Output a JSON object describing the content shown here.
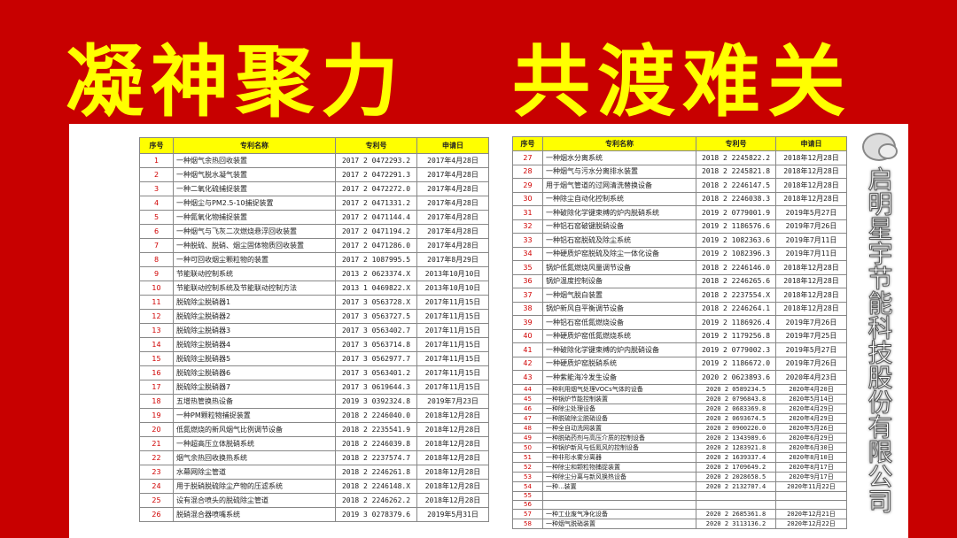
{
  "title": {
    "left": "凝神聚力",
    "right": "共渡难关"
  },
  "table": {
    "headers": [
      "序号",
      "专利名称",
      "专利号",
      "申请日"
    ],
    "left_rows": [
      [
        "1",
        "一种烟气余热回收装置",
        "2017 2 0472293.2",
        "2017年4月28日"
      ],
      [
        "2",
        "一种烟气脱水凝气装置",
        "2017 2 0472291.3",
        "2017年4月28日"
      ],
      [
        "3",
        "一种二氧化硫捕捉装置",
        "2017 2 0472272.0",
        "2017年4月28日"
      ],
      [
        "4",
        "一种烟尘与PM2.5-10捕捉装置",
        "2017 2 0471331.2",
        "2017年4月28日"
      ],
      [
        "5",
        "一种氮氧化物捕捉装置",
        "2017 2 0471144.4",
        "2017年4月28日"
      ],
      [
        "6",
        "一种烟气与飞灰二次燃烧悬浮回收装置",
        "2017 2 0471194.2",
        "2017年4月28日"
      ],
      [
        "7",
        "一种脱硫、脱硝、烟尘固体物质回收装置",
        "2017 2 0471286.0",
        "2017年4月28日"
      ],
      [
        "8",
        "一种可回收烟尘颗粒物的装置",
        "2017 2 1087995.5",
        "2017年8月29日"
      ],
      [
        "9",
        "节能联动控制系统",
        "2013 2 0623374.X",
        "2013年10月10日"
      ],
      [
        "10",
        "节能联动控制系统及节能联动控制方法",
        "2013 1 0469822.X",
        "2013年10月10日"
      ],
      [
        "11",
        "脱硫除尘脱硝器1",
        "2017 3 0563728.X",
        "2017年11月15日"
      ],
      [
        "12",
        "脱硫除尘脱硝器2",
        "2017 3 0563727.5",
        "2017年11月15日"
      ],
      [
        "13",
        "脱硫除尘脱硝器3",
        "2017 3 0563402.7",
        "2017年11月15日"
      ],
      [
        "14",
        "脱硫除尘脱硝器4",
        "2017 3 0563714.8",
        "2017年11月15日"
      ],
      [
        "15",
        "脱硫除尘脱硝器5",
        "2017 3 0562977.7",
        "2017年11月15日"
      ],
      [
        "16",
        "脱硫除尘脱硝器6",
        "2017 3 0563401.2",
        "2017年11月15日"
      ],
      [
        "17",
        "脱硫除尘脱硝器7",
        "2017 3 0619644.3",
        "2017年11月15日"
      ],
      [
        "18",
        "五增热管换热设备",
        "2019 3 0392324.8",
        "2019年7月23日"
      ],
      [
        "19",
        "一种PM颗粒物捕捉装置",
        "2018 2 2246040.0",
        "2018年12月28日"
      ],
      [
        "20",
        "低氮燃烧的新风烟气比例调节设备",
        "2018 2 2235541.9",
        "2018年12月28日"
      ],
      [
        "21",
        "一种超高压立体脱硝系统",
        "2018 2 2246039.8",
        "2018年12月28日"
      ],
      [
        "22",
        "烟气余热回收换热系统",
        "2018 2 2237574.7",
        "2018年12月28日"
      ],
      [
        "23",
        "水幕网除尘管道",
        "2018 2 2246261.8",
        "2018年12月28日"
      ],
      [
        "24",
        "用于脱硝脱硫除尘产物的压滤系统",
        "2018 2 2246148.X",
        "2018年12月28日"
      ],
      [
        "25",
        "设有混合喷头的脱硫除尘管道",
        "2018 2 2246262.2",
        "2018年12月28日"
      ],
      [
        "26",
        "脱硝混合器喷嘴系统",
        "2019 3 0278379.6",
        "2019年5月31日"
      ]
    ],
    "right_rows": [
      [
        "27",
        "一种烟水分离系统",
        "2018 2 2245822.2",
        "2018年12月28日"
      ],
      [
        "28",
        "一种烟气与污水分离排水装置",
        "2018 2 2245821.8",
        "2018年12月28日"
      ],
      [
        "29",
        "用于烟气管道的过网清洗替换设备",
        "2018 2 2246147.5",
        "2018年12月28日"
      ],
      [
        "30",
        "一种除尘自动化控制系统",
        "2018 2 2246038.3",
        "2018年12月28日"
      ],
      [
        "31",
        "一种破除化学键束缚的炉内脱硝系统",
        "2019 2 0779001.9",
        "2019年5月27日"
      ],
      [
        "32",
        "一种铝石窑破键脱硝设备",
        "2019 2 1186576.6",
        "2019年7月26日"
      ],
      [
        "33",
        "一种铝石窑脱硫及除尘系统",
        "2019 2 1082363.6",
        "2019年7月11日"
      ],
      [
        "34",
        "一种硬质炉窑脱硫及除尘一体化设备",
        "2019 2 1082396.3",
        "2019年7月11日"
      ],
      [
        "35",
        "锅炉低氮燃烧风量调节设备",
        "2018 2 2246146.0",
        "2018年12月28日"
      ],
      [
        "36",
        "锅炉温度控制设备",
        "2018 2 2246265.6",
        "2018年12月28日"
      ],
      [
        "37",
        "一种烟气脱白装置",
        "2018 2 2237554.X",
        "2018年12月28日"
      ],
      [
        "38",
        "锅炉新风自平衡调节设备",
        "2018 2 2246264.1",
        "2018年12月28日"
      ],
      [
        "39",
        "一种铝石窑低氮燃烧设备",
        "2019 2 1186926.4",
        "2019年7月26日"
      ],
      [
        "40",
        "一种硬质炉窑低氮燃烧系统",
        "2019 2 1179256.8",
        "2019年7月25日"
      ],
      [
        "41",
        "一种破除化学键束缚的炉内脱硝设备",
        "2019 2 0779002.3",
        "2019年5月27日"
      ],
      [
        "42",
        "一种硬质炉窑脱硝系统",
        "2019 2 1186672.0",
        "2019年7月26日"
      ],
      [
        "43",
        "一种紫能海冷发生设备",
        "2020 2 0623893.6",
        "2020年4月23日"
      ],
      [
        "44",
        "一种利用烟气处理VOCs气体的设备",
        "2020 2 0589234.5",
        "2020年4月20日"
      ],
      [
        "45",
        "一种锅炉节能控制装置",
        "2020 2 0796843.8",
        "2020年5月14日"
      ],
      [
        "46",
        "一种除尘处理设备",
        "2020 2 0683369.8",
        "2020年4月29日"
      ],
      [
        "47",
        "一种脱硫除尘脱硝设备",
        "2020 2 0693674.5",
        "2020年4月29日"
      ],
      [
        "48",
        "一种全自动洗网装置",
        "2020 2 0900220.0",
        "2020年5月26日"
      ],
      [
        "49",
        "一种脱硝药剂与高压介质的控制设备",
        "2020 2 1343989.6",
        "2020年6月29日"
      ],
      [
        "50",
        "一种锅炉新风与低氮风的控制设备",
        "2020 2 1283921.8",
        "2020年6月30日"
      ],
      [
        "51",
        "一种非形水雾分离器",
        "2020 2 1639337.4",
        "2020年8月10日"
      ],
      [
        "52",
        "一种除尘和颗粒物捕捉装置",
        "2020 2 1709649.2",
        "2020年8月17日"
      ],
      [
        "53",
        "一种除尘分离与新风换热设备",
        "2020 2 2028658.5",
        "2020年9月17日"
      ],
      [
        "54",
        "一种...装置",
        "2020 2 2132707.4",
        "2020年11月22日"
      ],
      [
        "55",
        "",
        "",
        ""
      ],
      [
        "56",
        "",
        "",
        ""
      ],
      [
        "57",
        "一种工业废气净化设备",
        "2020 2 2685361.8",
        "2020年12月21日"
      ],
      [
        "58",
        "一种烟气脱硝装置",
        "2020 2 3113136.2",
        "2020年12月22日"
      ]
    ]
  },
  "watermark": {
    "icon": "wechat-icon",
    "text": "启明星宇节能科技股份有限公司"
  }
}
